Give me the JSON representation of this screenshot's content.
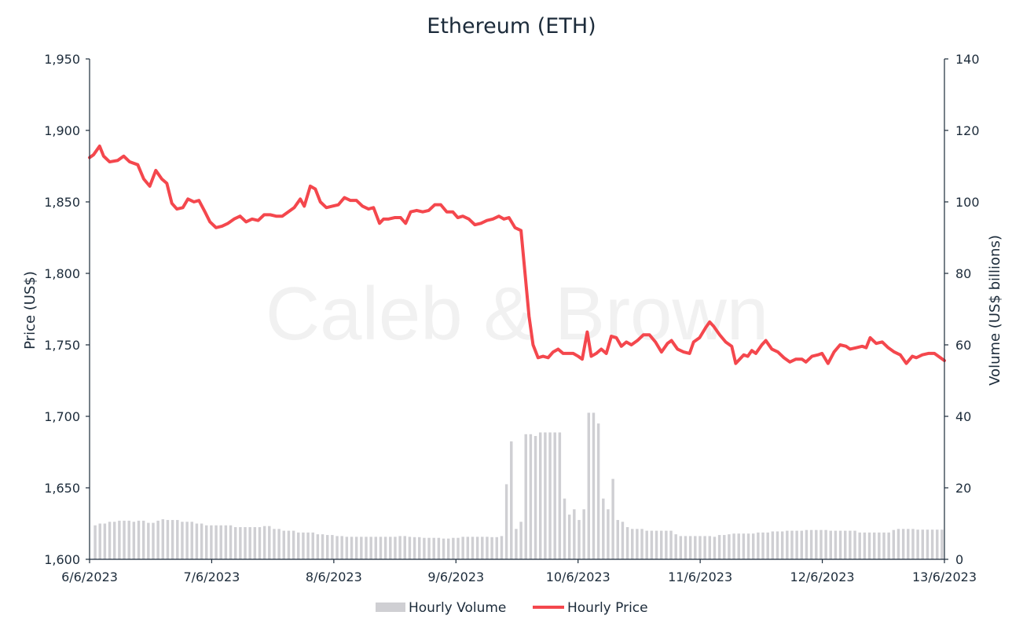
{
  "chart_data": {
    "type": "line+bar",
    "title": "Ethereum (ETH)",
    "watermark": "Caleb & Brown",
    "x_tick_labels": [
      "6/6/2023",
      "7/6/2023",
      "8/6/2023",
      "9/6/2023",
      "10/6/2023",
      "11/6/2023",
      "12/6/2023",
      "13/6/2023"
    ],
    "x_range_days": [
      0,
      7
    ],
    "y_left": {
      "label": "Price (US$)",
      "range": [
        1600,
        1950
      ],
      "ticks": [
        1600,
        1650,
        1700,
        1750,
        1800,
        1850,
        1900,
        1950
      ],
      "tick_labels": [
        "1,600",
        "1,650",
        "1,700",
        "1,750",
        "1,800",
        "1,850",
        "1,900",
        "1,950"
      ]
    },
    "y_right": {
      "label": "Volume (US$ billions)",
      "range": [
        0,
        140
      ],
      "ticks": [
        0,
        20,
        40,
        60,
        80,
        100,
        120,
        140
      ],
      "tick_labels": [
        "0",
        "20",
        "40",
        "60",
        "80",
        "100",
        "120",
        "140"
      ]
    },
    "legend": {
      "position": "bottom-center",
      "items": [
        {
          "label": "Hourly Volume",
          "color": "#cfcfd3",
          "kind": "bar"
        },
        {
          "label": "Hourly Price",
          "color": "#f4474d",
          "kind": "line"
        }
      ]
    },
    "grid": false,
    "series": [
      {
        "name": "Hourly Price",
        "axis": "left",
        "color": "#f4474d",
        "points": [
          [
            0,
            1881
          ],
          [
            0.04,
            1883
          ],
          [
            0.1,
            1889
          ],
          [
            0.14,
            1882
          ],
          [
            0.2,
            1878
          ],
          [
            0.28,
            1879
          ],
          [
            0.34,
            1882
          ],
          [
            0.4,
            1878
          ],
          [
            0.48,
            1876
          ],
          [
            0.54,
            1866
          ],
          [
            0.6,
            1861
          ],
          [
            0.66,
            1872
          ],
          [
            0.72,
            1866
          ],
          [
            0.77,
            1863
          ],
          [
            0.82,
            1849
          ],
          [
            0.87,
            1845
          ],
          [
            0.93,
            1846
          ],
          [
            0.98,
            1852
          ],
          [
            1.04,
            1850
          ],
          [
            1.09,
            1851
          ],
          [
            1.15,
            1843
          ],
          [
            1.2,
            1836
          ],
          [
            1.26,
            1832
          ],
          [
            1.32,
            1833
          ],
          [
            1.38,
            1835
          ],
          [
            1.44,
            1838
          ],
          [
            1.5,
            1840
          ],
          [
            1.56,
            1836
          ],
          [
            1.62,
            1838
          ],
          [
            1.68,
            1837
          ],
          [
            1.74,
            1841
          ],
          [
            1.8,
            1841
          ],
          [
            1.86,
            1840
          ],
          [
            1.92,
            1840
          ],
          [
            1.98,
            1843
          ],
          [
            2.04,
            1846
          ],
          [
            2.1,
            1852
          ],
          [
            2.14,
            1847
          ],
          [
            2.2,
            1861
          ],
          [
            2.25,
            1859
          ],
          [
            2.3,
            1850
          ],
          [
            2.36,
            1846
          ],
          [
            2.42,
            1847
          ],
          [
            2.48,
            1848
          ],
          [
            2.54,
            1853
          ],
          [
            2.6,
            1851
          ],
          [
            2.66,
            1851
          ],
          [
            2.72,
            1847
          ],
          [
            2.78,
            1845
          ],
          [
            2.83,
            1846
          ],
          [
            2.89,
            1835
          ],
          [
            2.93,
            1838
          ],
          [
            2.98,
            1838
          ],
          [
            3.04,
            1839
          ],
          [
            3.1,
            1839
          ],
          [
            3.15,
            1835
          ],
          [
            3.2,
            1843
          ],
          [
            3.26,
            1844
          ],
          [
            3.32,
            1843
          ],
          [
            3.38,
            1844
          ],
          [
            3.44,
            1848
          ],
          [
            3.5,
            1848
          ],
          [
            3.56,
            1843
          ],
          [
            3.62,
            1843
          ],
          [
            3.67,
            1839
          ],
          [
            3.72,
            1840
          ],
          [
            3.78,
            1838
          ],
          [
            3.84,
            1834
          ],
          [
            3.9,
            1835
          ],
          [
            3.96,
            1837
          ],
          [
            4.02,
            1838
          ],
          [
            4.08,
            1840
          ],
          [
            4.13,
            1838
          ],
          [
            4.18,
            1839
          ],
          [
            4.24,
            1832
          ],
          [
            4.3,
            1830
          ],
          [
            4.34,
            1800
          ],
          [
            4.38,
            1770
          ],
          [
            4.42,
            1750
          ],
          [
            4.47,
            1741
          ],
          [
            4.52,
            1742
          ],
          [
            4.57,
            1741
          ],
          [
            4.62,
            1745
          ],
          [
            4.67,
            1747
          ],
          [
            4.72,
            1744
          ],
          [
            4.77,
            1744
          ],
          [
            4.82,
            1744
          ],
          [
            4.87,
            1742
          ],
          [
            4.91,
            1740
          ],
          [
            4.96,
            1759
          ],
          [
            5.0,
            1742
          ],
          [
            5.05,
            1744
          ],
          [
            5.1,
            1747
          ],
          [
            5.15,
            1744
          ],
          [
            5.2,
            1756
          ],
          [
            5.25,
            1755
          ],
          [
            5.3,
            1749
          ],
          [
            5.35,
            1752
          ],
          [
            5.4,
            1750
          ],
          [
            5.46,
            1753
          ],
          [
            5.52,
            1757
          ],
          [
            5.58,
            1757
          ],
          [
            5.64,
            1752
          ],
          [
            5.7,
            1745
          ],
          [
            5.76,
            1751
          ],
          [
            5.8,
            1753
          ],
          [
            5.86,
            1747
          ],
          [
            5.92,
            1745
          ],
          [
            5.98,
            1744
          ],
          [
            6.02,
            1752
          ],
          [
            6.08,
            1755
          ],
          [
            6.14,
            1762
          ],
          [
            6.18,
            1766
          ],
          [
            6.22,
            1763
          ],
          [
            6.28,
            1757
          ],
          [
            6.34,
            1752
          ],
          [
            6.4,
            1749
          ],
          [
            6.44,
            1737
          ],
          [
            6.48,
            1740
          ],
          [
            6.52,
            1743
          ],
          [
            6.56,
            1742
          ],
          [
            6.6,
            1746
          ],
          [
            6.64,
            1744
          ],
          [
            6.7,
            1750
          ],
          [
            6.74,
            1753
          ],
          [
            6.8,
            1747
          ],
          [
            6.86,
            1745
          ],
          [
            6.92,
            1741
          ],
          [
            6.98,
            1738
          ],
          [
            7.04,
            1740
          ],
          [
            7.1,
            1740
          ],
          [
            7.14,
            1738
          ],
          [
            7.2,
            1742
          ],
          [
            7.26,
            1743
          ],
          [
            7.3,
            1744
          ],
          [
            7.36,
            1737
          ],
          [
            7.42,
            1745
          ],
          [
            7.48,
            1750
          ],
          [
            7.54,
            1749
          ],
          [
            7.58,
            1747
          ],
          [
            7.64,
            1748
          ],
          [
            7.7,
            1749
          ],
          [
            7.74,
            1748
          ],
          [
            7.78,
            1755
          ],
          [
            7.84,
            1751
          ],
          [
            7.9,
            1752
          ],
          [
            7.96,
            1748
          ],
          [
            8.02,
            1745
          ],
          [
            8.08,
            1743
          ],
          [
            8.14,
            1737
          ],
          [
            8.2,
            1742
          ],
          [
            8.24,
            1741
          ],
          [
            8.3,
            1743
          ],
          [
            8.36,
            1744
          ],
          [
            8.42,
            1744
          ],
          [
            8.48,
            1741
          ],
          [
            8.52,
            1739
          ]
        ]
      },
      {
        "name": "Hourly Volume",
        "axis": "right",
        "color": "#cfcfd3",
        "values": [
          9.5,
          10,
          10,
          10.5,
          10.5,
          10.8,
          10.8,
          10.8,
          10.5,
          10.8,
          10.8,
          10.2,
          10.2,
          10.8,
          11.2,
          11,
          11,
          11,
          10.5,
          10.5,
          10.5,
          10,
          10,
          9.5,
          9.5,
          9.5,
          9.5,
          9.5,
          9.5,
          9,
          9,
          9,
          9,
          9,
          9,
          9.3,
          9.3,
          8.5,
          8.5,
          8,
          8,
          8,
          7.5,
          7.5,
          7.5,
          7.5,
          7,
          7,
          6.8,
          6.8,
          6.5,
          6.5,
          6.3,
          6.3,
          6.3,
          6.3,
          6.3,
          6.3,
          6.3,
          6.3,
          6.3,
          6.3,
          6.3,
          6.5,
          6.5,
          6.3,
          6.2,
          6.2,
          6,
          6,
          6,
          6,
          5.8,
          5.8,
          6,
          6,
          6.3,
          6.3,
          6.3,
          6.3,
          6.3,
          6.3,
          6.2,
          6.2,
          6.5,
          21,
          33,
          8.5,
          10.5,
          35,
          35,
          34.5,
          35.5,
          35.5,
          35.5,
          35.5,
          35.5,
          17,
          12.5,
          14,
          11,
          14,
          41,
          41,
          38,
          17,
          14,
          22.5,
          11,
          10.5,
          9,
          8.5,
          8.5,
          8.5,
          8,
          8,
          8,
          8,
          8,
          8,
          7,
          6.5,
          6.5,
          6.5,
          6.5,
          6.5,
          6.5,
          6.5,
          6.3,
          6.8,
          6.8,
          7,
          7.2,
          7.2,
          7.2,
          7.2,
          7.2,
          7.5,
          7.5,
          7.5,
          7.8,
          7.8,
          7.8,
          8,
          8,
          8,
          8,
          8.2,
          8.2,
          8.2,
          8.2,
          8.2,
          8,
          8,
          8,
          8,
          8,
          8,
          7.5,
          7.5,
          7.5,
          7.5,
          7.5,
          7.5,
          7.5,
          8.2,
          8.5,
          8.5,
          8.5,
          8.5,
          8.3,
          8.3,
          8.3,
          8.3,
          8.3,
          8.3
        ]
      }
    ]
  }
}
